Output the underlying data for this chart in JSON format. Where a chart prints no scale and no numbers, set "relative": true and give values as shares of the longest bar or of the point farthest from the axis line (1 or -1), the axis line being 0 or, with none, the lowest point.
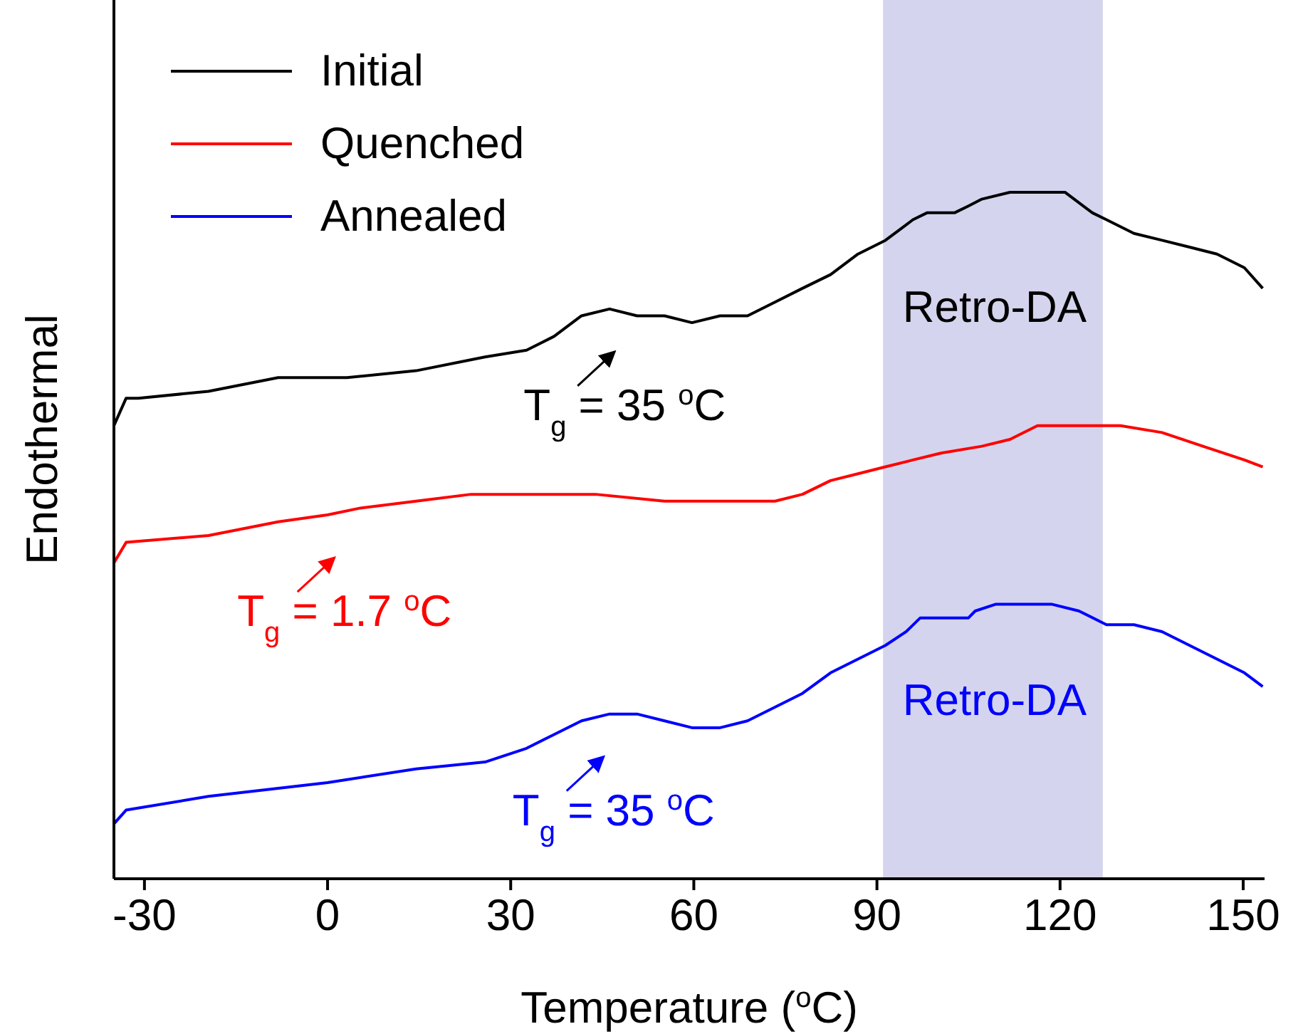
{
  "chart_data": {
    "type": "line",
    "relative": true,
    "xlabel": "Temperature ($^{o}$C)",
    "ylabel": "Endothermal",
    "xlim": [
      -35,
      153.5
    ],
    "xticks": [
      -30,
      0,
      30,
      60,
      90,
      120,
      150
    ],
    "legend": "top left",
    "line_style": "solid",
    "marker": "none",
    "bands": [
      {
        "axis": "x",
        "from": 91,
        "to": 127,
        "color": "#d4d4ee"
      }
    ],
    "annotations": [
      {
        "text": "T$_{g}$ = 35 $^{o}$C",
        "x": 47.5,
        "y": 0.83
      },
      {
        "text": "T$_{g}$ = 1.7 $^{o}$C",
        "x": 1.6,
        "y": 0.53
      },
      {
        "text": "T$_{g}$ = 35 $^{o}$C",
        "x": 45.7,
        "y": 0.24
      },
      {
        "text": "Retro-DA",
        "x": 109.3,
        "y": 0.99
      },
      {
        "text": "Retro-DA",
        "x": 109.3,
        "y": 0.4
      }
    ],
    "series": [
      {
        "name": "Initial",
        "color": "#000000",
        "x": [
          -35,
          -33,
          -31,
          -19.5,
          -8.1,
          3.2,
          14.5,
          25.8,
          32.6,
          37.1,
          41.6,
          46.2,
          50.7,
          55.2,
          59.7,
          64.3,
          68.8,
          73.3,
          77.8,
          82.4,
          86.9,
          91.4,
          95.9,
          98.2,
          102.7,
          105,
          107.2,
          111.8,
          116.3,
          120.8,
          125.3,
          127.6,
          132.1,
          136.7,
          141.2,
          145.7,
          150.2,
          153.2
        ],
        "values": [
          0.66,
          0.7,
          0.7,
          0.71,
          0.73,
          0.73,
          0.74,
          0.76,
          0.77,
          0.79,
          0.82,
          0.83,
          0.82,
          0.82,
          0.81,
          0.82,
          0.82,
          0.84,
          0.86,
          0.88,
          0.91,
          0.93,
          0.96,
          0.97,
          0.97,
          0.98,
          0.99,
          1.0,
          1.0,
          1.0,
          0.97,
          0.96,
          0.94,
          0.93,
          0.92,
          0.91,
          0.89,
          0.86
        ]
      },
      {
        "name": "Quenched",
        "color": "#ff0000",
        "x": [
          -35,
          -33,
          -19.5,
          -8.1,
          0,
          5.4,
          14.5,
          23.5,
          32.6,
          43.9,
          55.2,
          64.3,
          73.3,
          77.8,
          82.4,
          86.9,
          91.4,
          95.9,
          100.5,
          107.2,
          111.8,
          116.3,
          120.8,
          125.3,
          129.9,
          136.7,
          143.4,
          150.2,
          153.2
        ],
        "values": [
          0.46,
          0.49,
          0.5,
          0.52,
          0.53,
          0.54,
          0.55,
          0.56,
          0.56,
          0.56,
          0.55,
          0.55,
          0.55,
          0.56,
          0.58,
          0.59,
          0.6,
          0.61,
          0.62,
          0.63,
          0.64,
          0.66,
          0.66,
          0.66,
          0.66,
          0.65,
          0.63,
          0.61,
          0.6
        ]
      },
      {
        "name": "Annealed",
        "color": "#0000ff",
        "x": [
          -35,
          -33,
          -19.5,
          0,
          14.5,
          25.8,
          32.6,
          37.1,
          41.6,
          46.2,
          50.7,
          55.2,
          59.7,
          64.3,
          68.8,
          73.3,
          77.8,
          82.4,
          86.9,
          91.4,
          94.8,
          97.1,
          98.2,
          102.7,
          105,
          106.1,
          109.5,
          114,
          118.6,
          123.1,
          127.6,
          132.1,
          136.7,
          141.2,
          145.7,
          150.2,
          153.2
        ],
        "values": [
          0.08,
          0.1,
          0.12,
          0.14,
          0.16,
          0.17,
          0.19,
          0.21,
          0.23,
          0.24,
          0.24,
          0.23,
          0.22,
          0.22,
          0.23,
          0.25,
          0.27,
          0.3,
          0.32,
          0.34,
          0.36,
          0.38,
          0.38,
          0.38,
          0.38,
          0.39,
          0.4,
          0.4,
          0.4,
          0.39,
          0.37,
          0.37,
          0.36,
          0.34,
          0.32,
          0.3,
          0.28
        ]
      }
    ]
  }
}
